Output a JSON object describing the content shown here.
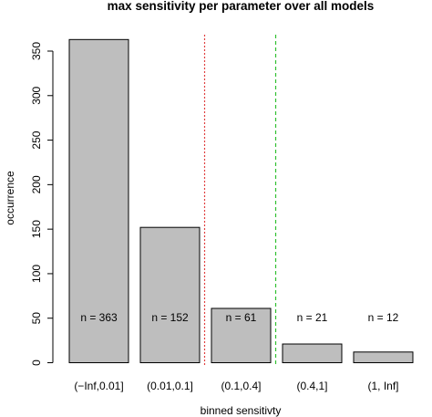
{
  "chart_data": {
    "type": "bar",
    "title": "max sensitivity per parameter over all models",
    "xlabel": "binned sensitivty",
    "ylabel": "occurrence",
    "categories": [
      "(−Inf,0.01]",
      "(0.01,0.1]",
      "(0.1,0.4]",
      "(0.4,1]",
      "(1, Inf]"
    ],
    "values": [
      363,
      152,
      61,
      21,
      12
    ],
    "data_labels": [
      "n = 363",
      "n = 152",
      "n = 61",
      "n = 21",
      "n = 12"
    ],
    "ylim": [
      0,
      365
    ],
    "yticks": [
      0,
      50,
      100,
      150,
      200,
      250,
      300,
      350
    ],
    "bar_color": "#bebebe",
    "reference_lines": [
      {
        "position": "between (0.01,0.1] and (0.1,0.4]",
        "color": "#e04040",
        "style": "dotted"
      },
      {
        "position": "between (0.1,0.4] and (0.4,1]",
        "color": "#30c030",
        "style": "dashed"
      }
    ],
    "grid": false,
    "legend": "none"
  }
}
